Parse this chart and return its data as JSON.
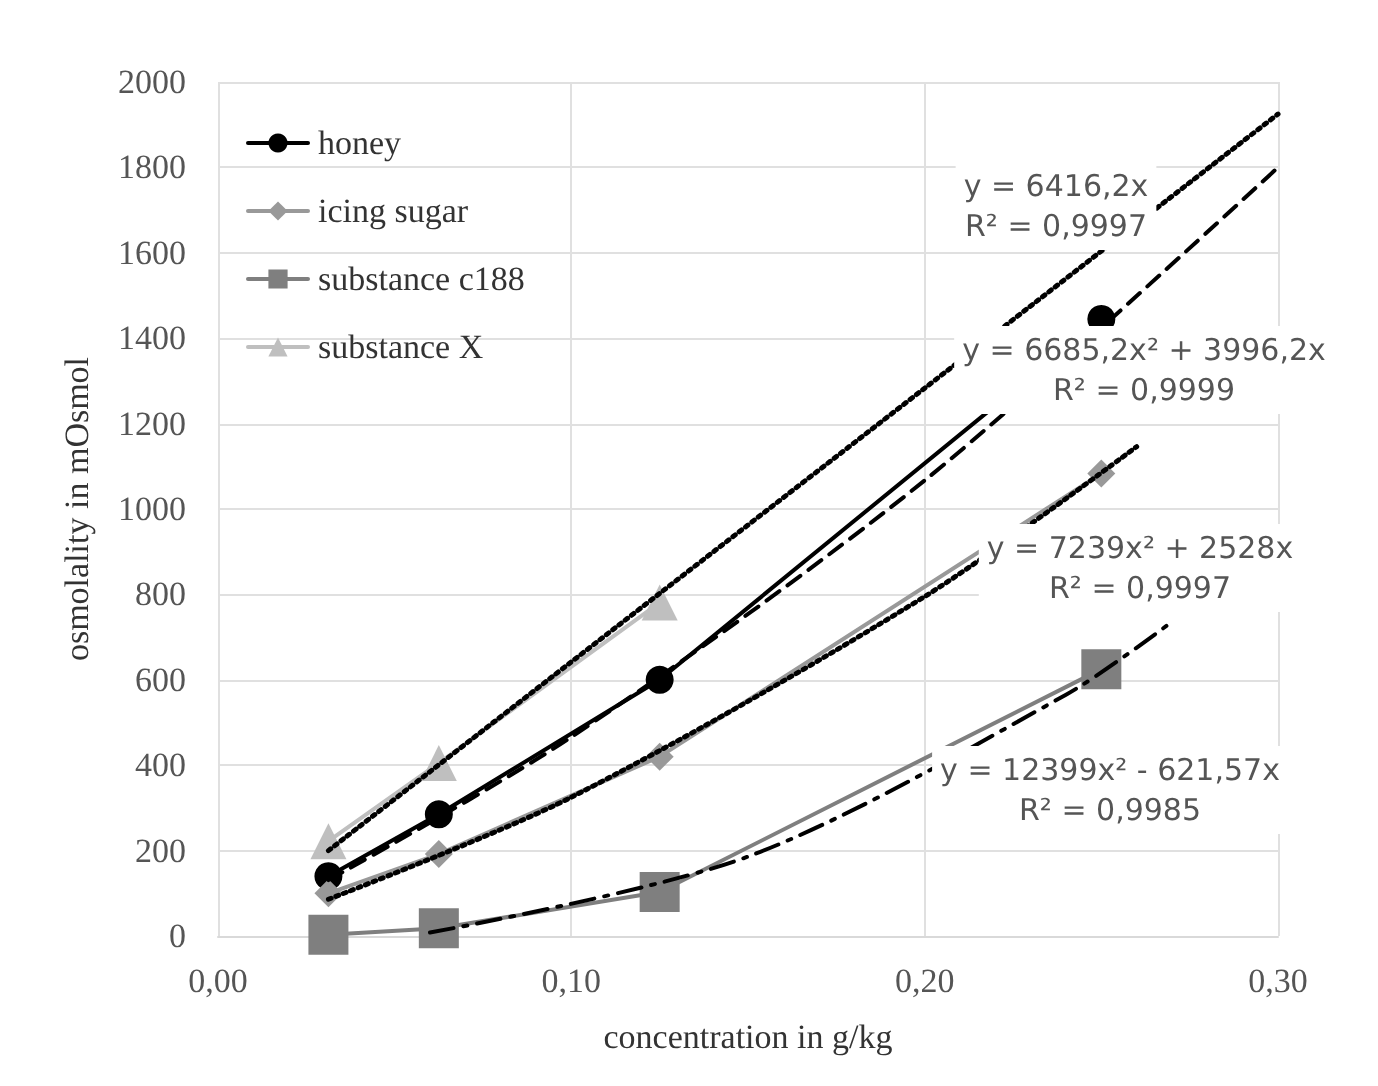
{
  "chart_data": {
    "type": "line",
    "xlabel": "concentration in g/kg",
    "ylabel": "osmolality in mOsmol",
    "xlim": [
      0,
      0.3
    ],
    "xticks": [
      {
        "value": 0,
        "label": "0,00"
      },
      {
        "value": 0.1,
        "label": "0,10"
      },
      {
        "value": 0.2,
        "label": "0,20"
      },
      {
        "value": 0.3,
        "label": "0,30"
      }
    ],
    "ylim": [
      0,
      2000
    ],
    "yticks": [
      0,
      200,
      400,
      600,
      800,
      1000,
      1200,
      1400,
      1600,
      1800,
      2000
    ],
    "grid": true,
    "legend": "top left",
    "line_style": "solid",
    "x": [
      0.03125,
      0.0625,
      0.125,
      0.25
    ],
    "series": [
      {
        "name": "honey",
        "color": "#000000",
        "marker": "circle",
        "values": [
          140,
          285,
          600,
          1445
        ]
      },
      {
        "name": "icing sugar",
        "color": "#999999",
        "marker": "diamond",
        "values": [
          100,
          192,
          420,
          1083
        ]
      },
      {
        "name": "substance c188",
        "color": "#7f7f7f",
        "marker": "square",
        "values": [
          3,
          18,
          103,
          625
        ]
      },
      {
        "name": "substance X",
        "color": "#bfbfbf",
        "marker": "triangle",
        "values": [
          222,
          405,
          781,
          null
        ]
      },
      {
        "type": "line",
        "color": "#000000",
        "marker": "none",
        "line_style": "dotted",
        "x": [
          0.03125,
          0.1,
          0.2,
          0.3
        ],
        "values": [
          200,
          642,
          1283,
          1925
        ]
      },
      {
        "type": "line",
        "color": "#000000",
        "marker": "none",
        "line_style": "dashed",
        "x": [
          0.03125,
          0.1,
          0.2,
          0.3
        ],
        "values": [
          131,
          466,
          1067,
          1800
        ]
      },
      {
        "type": "line",
        "color": "#000000",
        "marker": "none",
        "line_style": "dotted",
        "x": [
          0.03125,
          0.1,
          0.2,
          0.26
        ],
        "values": [
          86,
          325,
          795,
          1146
        ]
      },
      {
        "type": "line",
        "color": "#000000",
        "marker": "none",
        "line_style": "dashdot",
        "x": [
          0.06,
          0.15,
          0.24,
          0.27
        ],
        "values": [
          8,
          186,
          565,
          736
        ]
      }
    ],
    "annotations": [
      "y = 6416,2x\nR² = 0,9997",
      "y = 6685,2x² + 3996,2x\nR² = 0,9999",
      "y = 7239x² + 2528x\nR² = 0,9997",
      "y = 12399x² - 621,57x\nR² = 0,9985"
    ]
  }
}
